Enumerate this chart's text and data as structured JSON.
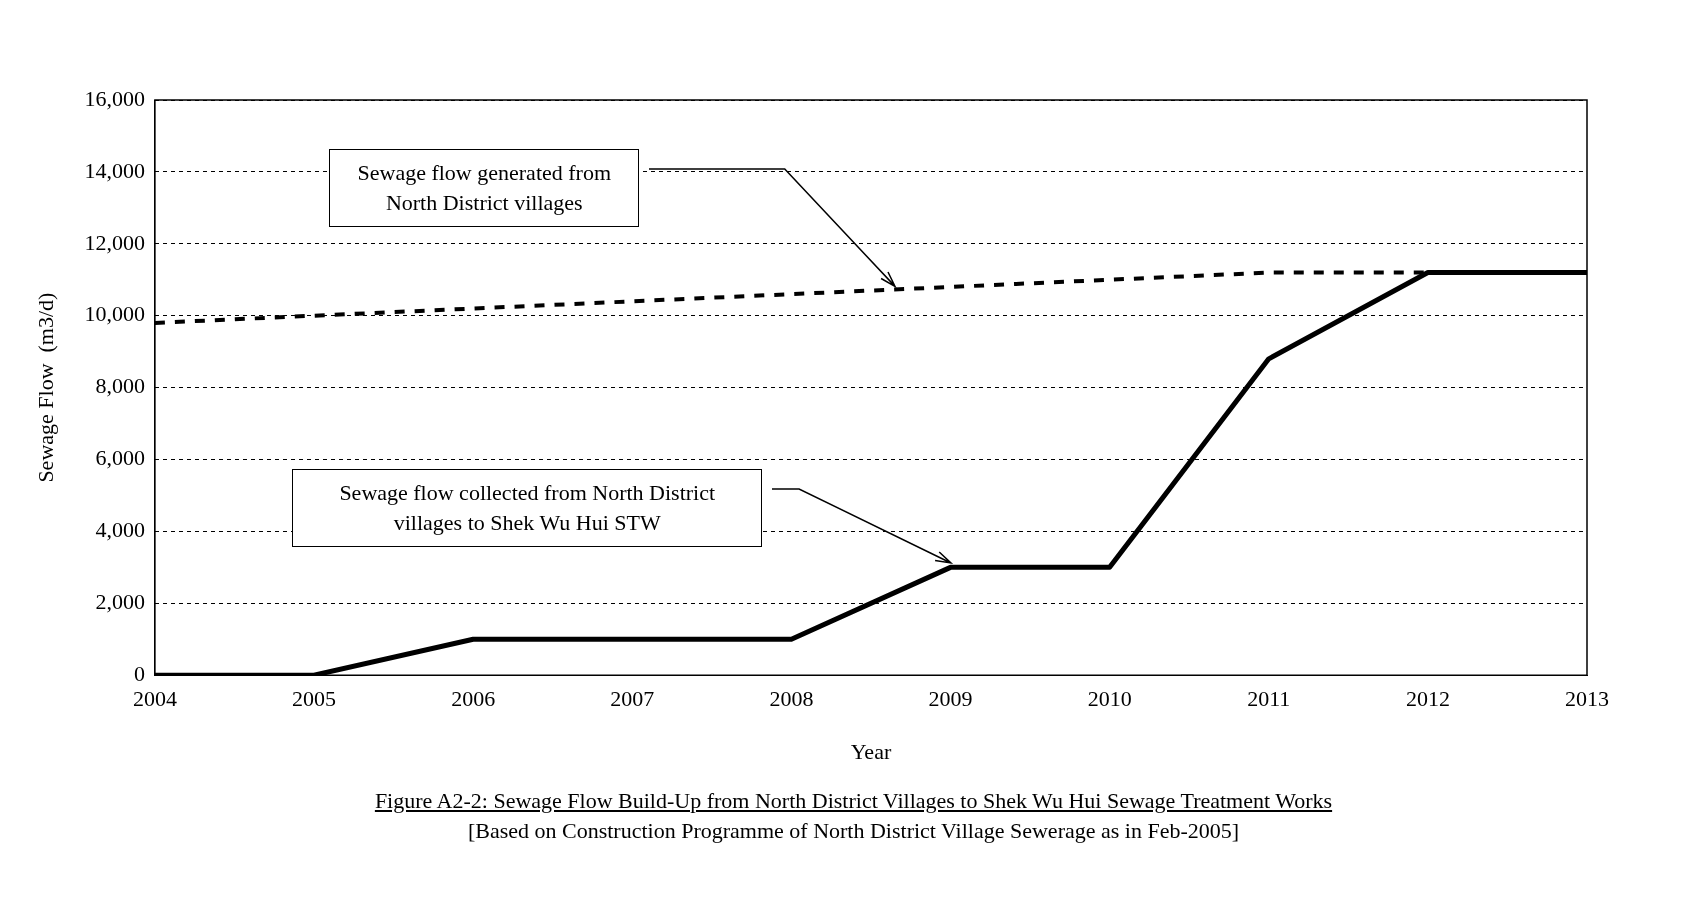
{
  "chart_data": {
    "type": "line",
    "title": "Figure A2-2: Sewage Flow Build-Up from North District Villages to Shek Wu Hui Sewage Treatment Works",
    "subtitle": "[Based on Construction Programme of North District Village Sewerage as in Feb-2005]",
    "xlabel": "Year",
    "ylabel": "Sewage Flow  (m3/d)",
    "x": [
      2004,
      2005,
      2006,
      2007,
      2008,
      2009,
      2010,
      2011,
      2012,
      2013
    ],
    "series": [
      {
        "color": "#000000",
        "line_style": "dashed",
        "values": [
          9800,
          10000,
          10200,
          10400,
          10600,
          10800,
          11000,
          11200,
          11200,
          null
        ]
      },
      {
        "color": "#000000",
        "line_style": "solid",
        "values": [
          0,
          0,
          1000,
          1000,
          1000,
          3000,
          3000,
          8800,
          11200,
          11200
        ]
      }
    ],
    "xlim": [
      2004,
      2013
    ],
    "xticks": [
      2004,
      2005,
      2006,
      2007,
      2008,
      2009,
      2010,
      2011,
      2012,
      2013
    ],
    "ylim": [
      0,
      16000
    ],
    "yticks": [
      0,
      {
        "value": 2000,
        "label": "2,000"
      },
      {
        "value": 4000,
        "label": "4,000"
      },
      {
        "value": 6000,
        "label": "6,000"
      },
      {
        "value": 8000,
        "label": "8,000"
      },
      {
        "value": 10000,
        "label": "10,000"
      },
      {
        "value": 12000,
        "label": "12,000"
      },
      {
        "value": 14000,
        "label": "14,000"
      },
      {
        "value": 16000,
        "label": "16,000"
      }
    ],
    "grid": "y",
    "legend": false,
    "marker": "none",
    "annotations": [
      "Sewage flow generated from North District villages",
      "Sewage flow collected from North District villages  to Shek Wu Hui STW"
    ]
  }
}
